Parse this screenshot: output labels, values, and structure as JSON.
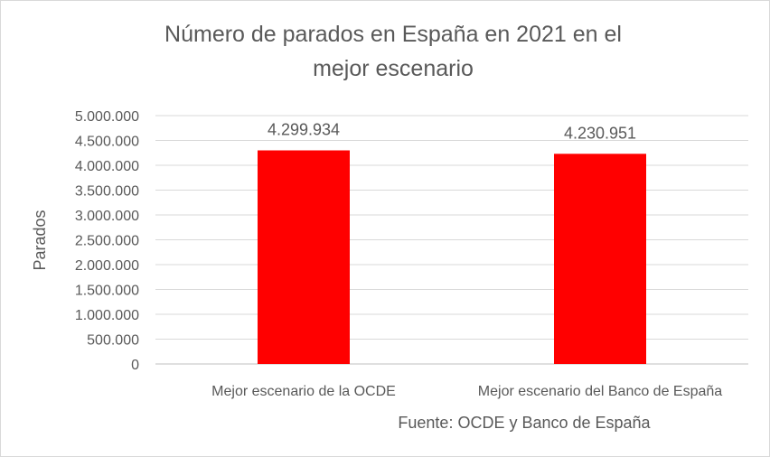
{
  "chart_data": {
    "type": "bar",
    "title": [
      "Número de parados en España en 2021 en el",
      "mejor escenario"
    ],
    "ylabel": "Parados",
    "xlabel": "",
    "categories": [
      "Mejor escenario de la OCDE",
      "Mejor escenario del Banco de España"
    ],
    "values": [
      4299934,
      4230951
    ],
    "data_labels": [
      "4.299.934",
      "4.230.951"
    ],
    "ylim": [
      0,
      5000000
    ],
    "yticks": [
      "0",
      "500.000",
      "1.000.000",
      "1.500.000",
      "2.000.000",
      "2.500.000",
      "3.000.000",
      "3.500.000",
      "4.000.000",
      "4.500.000",
      "5.000.000"
    ],
    "grid": true,
    "bar_color": "#ff0000",
    "source": "Fuente: OCDE y Banco de España"
  }
}
